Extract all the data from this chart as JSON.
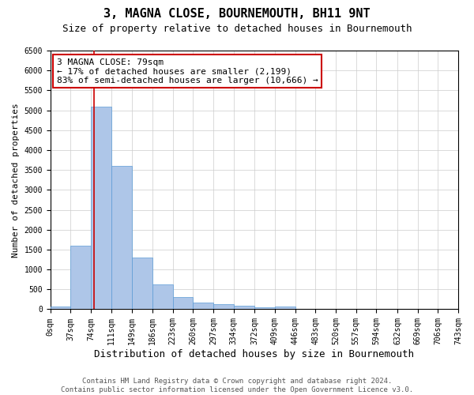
{
  "title": "3, MAGNA CLOSE, BOURNEMOUTH, BH11 9NT",
  "subtitle": "Size of property relative to detached houses in Bournemouth",
  "xlabel": "Distribution of detached houses by size in Bournemouth",
  "ylabel": "Number of detached properties",
  "footer_line1": "Contains HM Land Registry data © Crown copyright and database right 2024.",
  "footer_line2": "Contains public sector information licensed under the Open Government Licence v3.0.",
  "annotation_title": "3 MAGNA CLOSE: 79sqm",
  "annotation_line2": "← 17% of detached houses are smaller (2,199)",
  "annotation_line3": "83% of semi-detached houses are larger (10,666) →",
  "property_size_sqm": 79,
  "bin_edges": [
    0,
    37,
    74,
    111,
    149,
    186,
    223,
    260,
    297,
    334,
    372,
    409,
    446,
    483,
    520,
    557,
    594,
    632,
    669,
    706,
    743
  ],
  "bin_counts": [
    75,
    1600,
    5100,
    3600,
    1300,
    625,
    300,
    165,
    130,
    80,
    40,
    75,
    0,
    0,
    0,
    0,
    0,
    0,
    0,
    0
  ],
  "bar_color": "#aec6e8",
  "bar_edge_color": "#5b9bd5",
  "vline_color": "#cc0000",
  "vline_x": 79,
  "annotation_box_color": "#ffffff",
  "annotation_box_edge_color": "#cc0000",
  "ylim": [
    0,
    6500
  ],
  "yticks": [
    0,
    500,
    1000,
    1500,
    2000,
    2500,
    3000,
    3500,
    4000,
    4500,
    5000,
    5500,
    6000,
    6500
  ],
  "grid_color": "#cccccc",
  "background_color": "#ffffff",
  "title_fontsize": 11,
  "subtitle_fontsize": 9,
  "xlabel_fontsize": 9,
  "ylabel_fontsize": 8,
  "tick_fontsize": 7,
  "footer_fontsize": 6.5,
  "annotation_fontsize": 8
}
